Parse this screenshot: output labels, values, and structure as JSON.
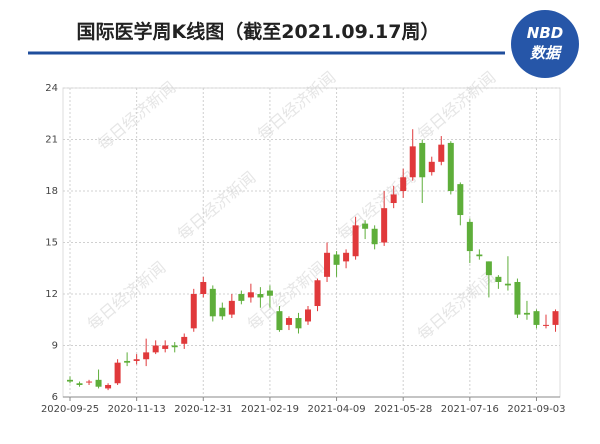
{
  "chart_data": {
    "type": "candlestick",
    "title": "国际医学周K线图（截至2021.09.17周）",
    "logo": {
      "top": "NBD",
      "bottom": "数据"
    },
    "watermark": "每日经济新闻",
    "categories": [
      "2020-09-25",
      null,
      null,
      null,
      null,
      null,
      null,
      "2020-11-13",
      null,
      null,
      null,
      null,
      null,
      null,
      "2020-12-31",
      null,
      null,
      null,
      null,
      null,
      null,
      "2021-02-19",
      null,
      null,
      null,
      null,
      null,
      null,
      "2021-04-09",
      null,
      null,
      null,
      null,
      null,
      null,
      "2021-05-28",
      null,
      null,
      null,
      null,
      null,
      null,
      "2021-07-16",
      null,
      null,
      null,
      null,
      null,
      null,
      "2021-09-03",
      null,
      null
    ],
    "open": [
      7.0,
      6.8,
      6.85,
      7.0,
      6.5,
      6.8,
      8.1,
      8.1,
      8.2,
      8.6,
      8.8,
      9.0,
      9.1,
      10.0,
      12.0,
      12.3,
      11.2,
      10.8,
      12.0,
      11.8,
      12.0,
      12.2,
      11.0,
      10.2,
      10.6,
      10.4,
      11.3,
      13.0,
      14.3,
      13.9,
      14.2,
      16.1,
      15.8,
      15.0,
      17.3,
      18.0,
      18.8,
      20.8,
      19.1,
      19.7,
      20.8,
      18.4,
      16.2,
      14.3,
      13.9,
      13.0,
      12.6,
      12.7,
      10.9,
      11.0,
      10.2,
      10.2
    ],
    "close": [
      6.9,
      6.7,
      6.9,
      6.6,
      6.7,
      8.0,
      8.0,
      8.2,
      8.6,
      9.0,
      9.0,
      8.9,
      9.5,
      12.0,
      12.7,
      10.7,
      10.7,
      11.6,
      11.6,
      12.1,
      11.8,
      11.9,
      9.9,
      10.6,
      10.0,
      11.1,
      12.8,
      14.4,
      13.7,
      14.4,
      16.0,
      15.8,
      14.9,
      17.0,
      17.8,
      18.8,
      20.6,
      18.8,
      19.7,
      20.7,
      18.0,
      16.6,
      14.5,
      14.2,
      13.1,
      12.7,
      12.5,
      10.8,
      10.8,
      10.2,
      10.2,
      11.0
    ],
    "low": [
      6.8,
      6.6,
      6.7,
      6.5,
      6.4,
      6.7,
      7.8,
      7.9,
      7.8,
      8.5,
      8.6,
      8.6,
      8.8,
      9.8,
      11.8,
      10.4,
      10.5,
      10.6,
      11.4,
      11.5,
      11.2,
      11.2,
      9.8,
      9.9,
      9.7,
      10.2,
      11.0,
      12.7,
      13.0,
      13.5,
      14.0,
      15.2,
      14.6,
      14.8,
      17.0,
      17.6,
      18.6,
      17.3,
      18.9,
      19.5,
      17.8,
      16.0,
      13.8,
      14.0,
      11.8,
      12.3,
      12.2,
      10.6,
      10.5,
      10.0,
      10.0,
      9.8
    ],
    "high": [
      7.2,
      6.9,
      7.0,
      7.6,
      6.8,
      8.2,
      8.6,
      8.5,
      9.4,
      9.3,
      9.3,
      9.2,
      9.7,
      12.3,
      13.0,
      12.5,
      11.5,
      12.0,
      12.2,
      12.6,
      12.4,
      12.5,
      11.3,
      10.7,
      10.9,
      11.3,
      12.9,
      15.0,
      14.5,
      14.6,
      16.5,
      16.3,
      16.0,
      18.0,
      18.3,
      19.3,
      21.6,
      21.0,
      20.0,
      21.2,
      20.9,
      18.5,
      16.4,
      14.6,
      13.9,
      13.1,
      14.2,
      12.9,
      11.6,
      11.1,
      10.8,
      11.1
    ],
    "up_color": "#e0393b",
    "down_color": "#5eae3a",
    "ylim": [
      6,
      24
    ],
    "yticks": [
      6,
      9,
      12,
      15,
      18,
      21,
      24
    ],
    "grid": true
  }
}
